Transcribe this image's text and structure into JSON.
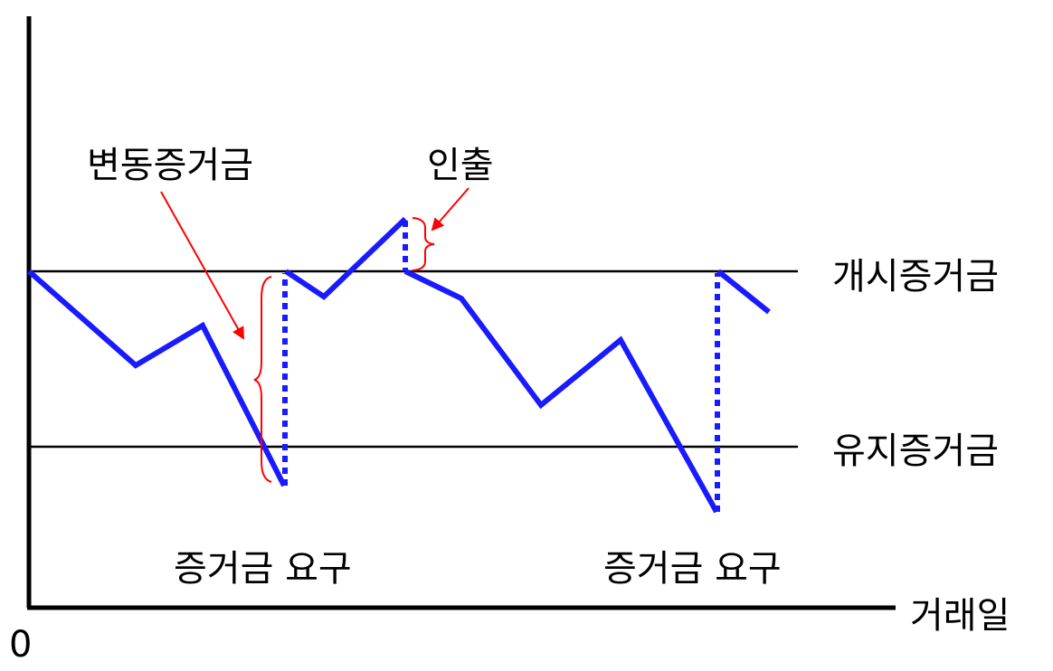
{
  "labels": {
    "variation_margin": "변동증거금",
    "withdrawal": "인출",
    "initial_margin": "개시증거금",
    "maintenance_margin": "유지증거금",
    "margin_call_1": "증거금 요구",
    "margin_call_2": "증거금 요구",
    "x_axis": "거래일",
    "origin": "0"
  },
  "colors": {
    "balance_line": "#1a1aff",
    "annotation": "#ff0000",
    "axis": "#000000"
  }
}
